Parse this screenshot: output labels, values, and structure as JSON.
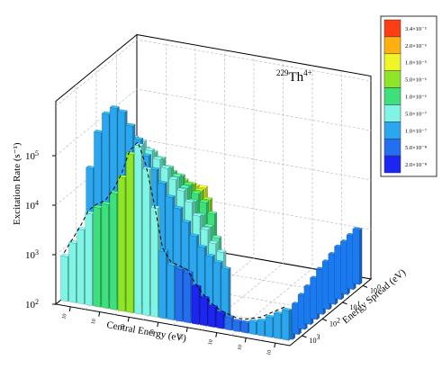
{
  "chart_data": {
    "type": "bar3d",
    "annotation": {
      "base": "229",
      "element": "Th",
      "charge": "4+"
    },
    "xlabel": "Central Energy (eV)",
    "ylabel": "Energy Spread (eV)",
    "zlabel": "Excitation Rate (s⁻¹)",
    "z_scale": "log",
    "z_ticks": [
      {
        "base": "10",
        "exp": "5",
        "value": 100000
      },
      {
        "base": "10",
        "exp": "4",
        "value": 10000
      },
      {
        "base": "10",
        "exp": "3",
        "value": 1000
      },
      {
        "base": "10",
        "exp": "2",
        "value": 100
      }
    ],
    "legend": {
      "placement": "right",
      "levels": [
        {
          "label": "3.4×10⁻⁵",
          "value": 3.4e-05,
          "color": "#ff3d14"
        },
        {
          "label": "2.0×10⁻⁵",
          "value": 2e-05,
          "color": "#ffb20f"
        },
        {
          "label": "1.0×10⁻⁵",
          "value": 1e-05,
          "color": "#f0f528"
        },
        {
          "label": "5.0×10⁻⁶",
          "value": 5e-06,
          "color": "#8ee627"
        },
        {
          "label": "1.0×10⁻⁶",
          "value": 1e-06,
          "color": "#3de07a"
        },
        {
          "label": "5.0×10⁻⁷",
          "value": 5e-07,
          "color": "#7ff5e6"
        },
        {
          "label": "1.0×10⁻⁷",
          "value": 1e-07,
          "color": "#2aa7ef"
        },
        {
          "label": "5.0×10⁻⁸",
          "value": 5e-08,
          "color": "#246ef0"
        },
        {
          "label": "2.0×10⁻⁸",
          "value": 2e-08,
          "color": "#1c25f2"
        }
      ]
    },
    "grid": true,
    "x_tick_count": 8,
    "y_tick_labels": [
      {
        "base": "10",
        "exp": "0"
      },
      {
        "base": "10",
        "exp": "1"
      },
      {
        "base": "10",
        "exp": "2"
      },
      {
        "base": "10",
        "exp": "3"
      }
    ],
    "rows": [
      {
        "level": 8,
        "values": [
          1,
          1.1,
          1.1,
          1.2,
          1.2
        ]
      },
      {
        "level": 7,
        "values": [
          1.05,
          1.15,
          1.2,
          1.25,
          1.3,
          1.35
        ]
      },
      {
        "level": 6,
        "values": [
          1.1,
          1.3,
          1.45,
          1.55,
          1.65,
          1.7,
          1.75,
          1.75
        ]
      },
      {
        "level": 5,
        "values": [
          1.2,
          1.6,
          1.85,
          1.95,
          2.0,
          2.05,
          2.0,
          1.95,
          1.85,
          1.7
        ]
      },
      {
        "level": 4,
        "values": [
          1.3,
          1.85,
          2.1,
          2.25,
          2.35,
          2.35,
          2.3,
          2.25,
          2.1,
          1.95,
          1.8,
          1.6
        ]
      },
      {
        "level": 3,
        "values": [
          1.6,
          2.35,
          2.6,
          2.75,
          2.85,
          2.8,
          2.7,
          2.55,
          2.4,
          2.2,
          1.95,
          1.7,
          1.5,
          1.3
        ]
      },
      {
        "level": 2,
        "values": [
          1.85,
          2.6,
          2.95,
          3.1,
          3.2,
          3.15,
          3.0,
          2.85,
          2.7,
          2.5,
          2.3,
          2.1,
          1.85,
          1.6,
          1.35,
          1.2
        ]
      },
      {
        "level": 1,
        "values": [
          2.6,
          3.35,
          3.75,
          3.9,
          3.85,
          3.6,
          3.35,
          3.05,
          2.8,
          2.55,
          2.3,
          2.1,
          1.85,
          1.6,
          1.4,
          1.25,
          1.15,
          1.05
        ]
      },
      {
        "level": 0,
        "values": [
          0.9,
          1.2,
          1.5,
          1.85,
          2.0,
          2.1,
          2.35,
          2.7,
          3.2,
          3.4,
          2.95,
          2.2,
          1.35,
          1.1,
          1.05,
          1.0,
          0.75,
          0.55,
          0.4,
          0.3,
          0.25,
          0.2,
          0.2,
          0.25,
          0.3,
          0.4,
          0.5,
          0.6
        ]
      }
    ],
    "right_wall": {
      "values": [
        0.55,
        0.6,
        0.68,
        0.75,
        0.82,
        0.9,
        0.95,
        1.0,
        1.05,
        1.05,
        1.08,
        1.1
      ],
      "level": 6
    }
  }
}
